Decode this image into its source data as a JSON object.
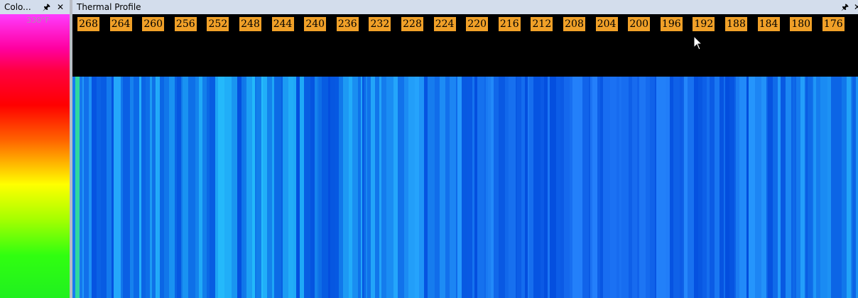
{
  "color_panel": {
    "title": "Colo...",
    "top_value": "330°F"
  },
  "profile_panel": {
    "title": "Thermal Profile",
    "ruler": {
      "labels": [
        268,
        264,
        260,
        256,
        252,
        248,
        244,
        240,
        236,
        232,
        228,
        224,
        220,
        216,
        212,
        208,
        204,
        200,
        196,
        192,
        188,
        184,
        180,
        176
      ]
    }
  }
}
